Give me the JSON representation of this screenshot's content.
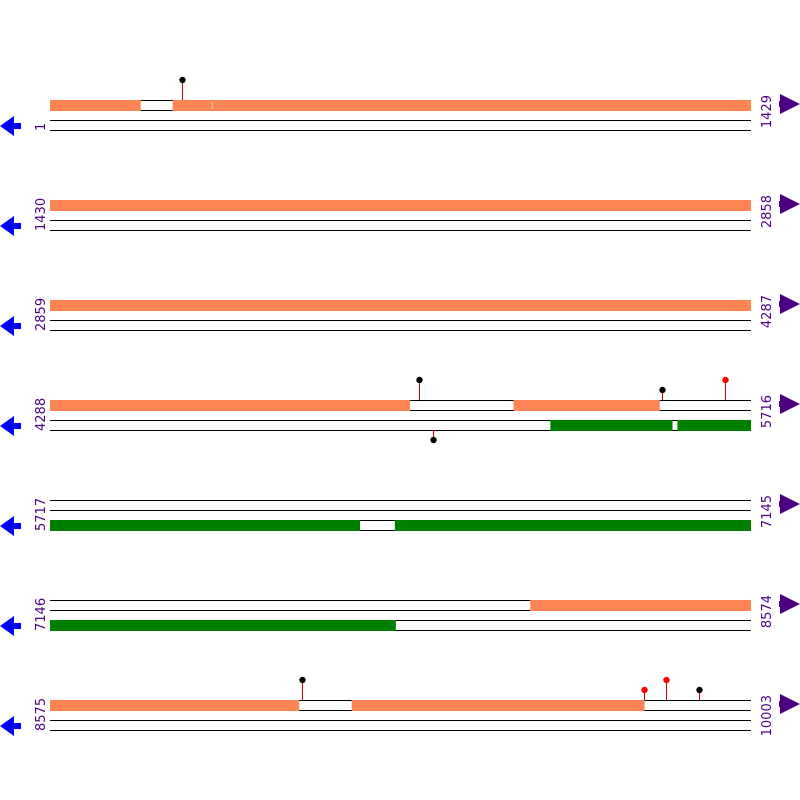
{
  "colors": {
    "feature_forward": "#ff8555",
    "feature_reverse": "#008000",
    "label_text": "#4b0082",
    "arrow_forward": "#4b0082",
    "arrow_reverse": "#0000ff",
    "line": "#000000",
    "site_black": "#000000",
    "site_red": "#ff0000",
    "stem": "#c00000"
  },
  "sequence_length": 10003,
  "rows": [
    {
      "start": 1,
      "end": 1429,
      "start_label": "1",
      "end_label": "1429",
      "forward_features": [
        [
          1,
          185
        ],
        [
          251,
          330
        ],
        [
          332,
          1429
        ]
      ],
      "reverse_features": [],
      "sites": [
        {
          "pos": 271,
          "strand": "forward",
          "color": "black",
          "height": "tall"
        }
      ]
    },
    {
      "start": 1430,
      "end": 2858,
      "start_label": "1430",
      "end_label": "2858",
      "forward_features": [
        [
          1430,
          2858
        ]
      ],
      "reverse_features": [],
      "sites": []
    },
    {
      "start": 2859,
      "end": 4287,
      "start_label": "2859",
      "end_label": "4287",
      "forward_features": [
        [
          2859,
          4287
        ]
      ],
      "reverse_features": [],
      "sites": []
    },
    {
      "start": 4288,
      "end": 5716,
      "start_label": "4288",
      "end_label": "5716",
      "forward_features": [
        [
          4288,
          5021
        ],
        [
          5233,
          5530
        ]
      ],
      "reverse_features": [
        [
          5308,
          5556
        ],
        [
          5567,
          5716
        ]
      ],
      "sites": [
        {
          "pos": 5040,
          "strand": "forward",
          "color": "black",
          "height": "tall"
        },
        {
          "pos": 5068,
          "strand": "reverse",
          "color": "black",
          "height": "short"
        },
        {
          "pos": 5536,
          "strand": "forward",
          "color": "black",
          "height": "short"
        },
        {
          "pos": 5663,
          "strand": "forward",
          "color": "red",
          "height": "tall"
        }
      ]
    },
    {
      "start": 5717,
      "end": 7145,
      "start_label": "5717",
      "end_label": "7145",
      "forward_features": [],
      "reverse_features": [
        [
          5717,
          6348
        ],
        [
          6420,
          7145
        ]
      ],
      "sites": []
    },
    {
      "start": 7146,
      "end": 8574,
      "start_label": "7146",
      "end_label": "8574",
      "forward_features": [
        [
          8125,
          8574
        ]
      ],
      "reverse_features": [
        [
          7146,
          7850
        ]
      ],
      "sites": []
    },
    {
      "start": 8575,
      "end": 10003,
      "start_label": "8575",
      "end_label": "10003",
      "forward_features": [
        [
          8575,
          9082
        ],
        [
          9190,
          9786
        ]
      ],
      "reverse_features": [],
      "sites": [
        {
          "pos": 9088,
          "strand": "forward",
          "color": "black",
          "height": "tall"
        },
        {
          "pos": 9786,
          "strand": "forward",
          "color": "red",
          "height": "short"
        },
        {
          "pos": 9830,
          "strand": "forward",
          "color": "red",
          "height": "tall"
        },
        {
          "pos": 9898,
          "strand": "forward",
          "color": "black",
          "height": "short"
        }
      ]
    }
  ]
}
